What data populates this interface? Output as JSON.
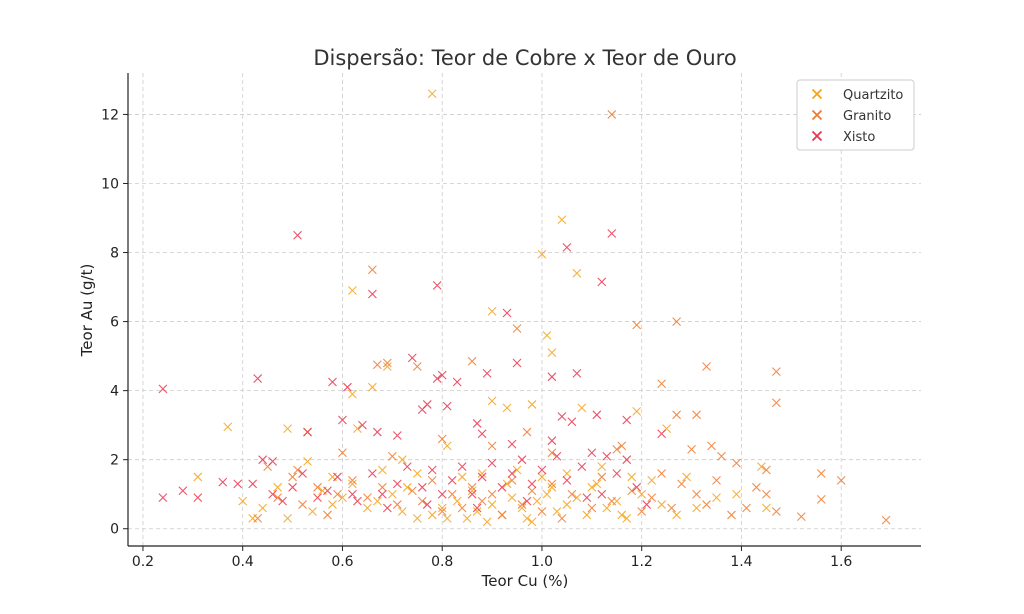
{
  "chart_data": {
    "type": "scatter",
    "title": "Dispersão: Teor de Cobre x Teor de Ouro",
    "xlabel": "Teor Cu (%)",
    "ylabel": "Teor Au (g/t)",
    "xlim": [
      0.17,
      1.76
    ],
    "ylim": [
      -0.5,
      13.2
    ],
    "xticks": [
      0.2,
      0.4,
      0.6,
      0.8,
      1.0,
      1.2,
      1.4,
      1.6
    ],
    "xtick_labels": [
      "0.2",
      "0.4",
      "0.6",
      "0.8",
      "1.0",
      "1.2",
      "1.4",
      "1.6"
    ],
    "yticks": [
      0,
      2,
      4,
      6,
      8,
      10,
      12
    ],
    "ytick_labels": [
      "0",
      "2",
      "4",
      "6",
      "8",
      "10",
      "12"
    ],
    "grid": true,
    "legend_position": "top-right",
    "series": [
      {
        "name": "Quartzito",
        "color": "#f5a31a",
        "points": [
          [
            0.78,
            12.6
          ],
          [
            1.04,
            8.95
          ],
          [
            1.0,
            7.95
          ],
          [
            1.07,
            7.4
          ],
          [
            0.62,
            6.9
          ],
          [
            0.9,
            6.3
          ],
          [
            1.01,
            5.6
          ],
          [
            1.02,
            5.1
          ],
          [
            0.69,
            4.7
          ],
          [
            0.66,
            4.1
          ],
          [
            0.62,
            3.9
          ],
          [
            0.37,
            2.95
          ],
          [
            0.53,
            2.8
          ],
          [
            0.49,
            2.9
          ],
          [
            0.63,
            2.9
          ],
          [
            0.9,
            3.7
          ],
          [
            0.93,
            3.5
          ],
          [
            0.98,
            3.6
          ],
          [
            1.08,
            3.5
          ],
          [
            1.19,
            3.4
          ],
          [
            1.25,
            2.9
          ],
          [
            0.81,
            2.4
          ],
          [
            0.72,
            2.0
          ],
          [
            0.53,
            1.95
          ],
          [
            0.58,
            1.5
          ],
          [
            0.68,
            1.7
          ],
          [
            0.75,
            1.6
          ],
          [
            0.84,
            1.5
          ],
          [
            0.88,
            1.6
          ],
          [
            0.95,
            1.7
          ],
          [
            1.0,
            1.5
          ],
          [
            1.05,
            1.6
          ],
          [
            1.12,
            1.8
          ],
          [
            1.18,
            1.5
          ],
          [
            1.22,
            1.4
          ],
          [
            1.29,
            1.5
          ],
          [
            1.44,
            1.8
          ],
          [
            0.31,
            1.5
          ],
          [
            0.4,
            0.8
          ],
          [
            0.42,
            0.3
          ],
          [
            0.44,
            0.6
          ],
          [
            0.49,
            0.3
          ],
          [
            0.54,
            0.5
          ],
          [
            0.58,
            0.7
          ],
          [
            0.6,
            0.9
          ],
          [
            0.65,
            0.6
          ],
          [
            0.7,
            1.0
          ],
          [
            0.72,
            0.5
          ],
          [
            0.75,
            0.3
          ],
          [
            0.78,
            0.4
          ],
          [
            0.8,
            0.6
          ],
          [
            0.83,
            0.8
          ],
          [
            0.85,
            0.3
          ],
          [
            0.87,
            0.5
          ],
          [
            0.9,
            0.7
          ],
          [
            0.92,
            0.4
          ],
          [
            0.94,
            0.9
          ],
          [
            0.96,
            0.6
          ],
          [
            0.97,
            0.3
          ],
          [
            0.99,
            0.8
          ],
          [
            1.01,
            1.0
          ],
          [
            1.03,
            0.5
          ],
          [
            1.05,
            0.7
          ],
          [
            1.07,
            0.9
          ],
          [
            1.09,
            0.4
          ],
          [
            1.1,
            1.2
          ],
          [
            1.13,
            0.6
          ],
          [
            1.15,
            0.8
          ],
          [
            1.17,
            0.3
          ],
          [
            1.2,
            1.0
          ],
          [
            1.24,
            0.7
          ],
          [
            1.27,
            0.4
          ],
          [
            1.31,
            0.6
          ],
          [
            1.35,
            0.9
          ],
          [
            1.39,
            1.0
          ],
          [
            1.45,
            0.6
          ],
          [
            0.47,
            1.2
          ],
          [
            0.56,
            1.1
          ],
          [
            0.62,
            1.3
          ],
          [
            0.73,
            1.2
          ],
          [
            0.86,
            1.1
          ],
          [
            0.93,
            1.3
          ],
          [
            1.02,
            1.2
          ],
          [
            1.11,
            1.3
          ],
          [
            1.16,
            0.4
          ],
          [
            0.98,
            0.2
          ],
          [
            0.89,
            0.2
          ],
          [
            0.81,
            0.3
          ],
          [
            0.67,
            0.8
          ]
        ]
      },
      {
        "name": "Granito",
        "color": "#f07a2f",
        "points": [
          [
            1.14,
            12.0
          ],
          [
            0.66,
            7.5
          ],
          [
            1.19,
            5.9
          ],
          [
            1.27,
            6.0
          ],
          [
            0.95,
            5.8
          ],
          [
            0.86,
            4.85
          ],
          [
            0.75,
            4.7
          ],
          [
            0.69,
            4.8
          ],
          [
            0.67,
            4.75
          ],
          [
            1.24,
            4.2
          ],
          [
            1.33,
            4.7
          ],
          [
            1.47,
            4.55
          ],
          [
            1.47,
            3.65
          ],
          [
            1.27,
            3.3
          ],
          [
            1.31,
            3.3
          ],
          [
            0.97,
            2.8
          ],
          [
            1.02,
            2.2
          ],
          [
            1.15,
            2.3
          ],
          [
            1.34,
            2.4
          ],
          [
            1.3,
            2.3
          ],
          [
            1.36,
            2.1
          ],
          [
            1.39,
            1.9
          ],
          [
            1.45,
            1.7
          ],
          [
            1.56,
            1.6
          ],
          [
            1.6,
            1.4
          ],
          [
            1.56,
            0.85
          ],
          [
            1.52,
            0.35
          ],
          [
            1.69,
            0.25
          ],
          [
            1.47,
            0.5
          ],
          [
            1.45,
            1.0
          ],
          [
            1.43,
            1.2
          ],
          [
            1.41,
            0.6
          ],
          [
            1.38,
            0.4
          ],
          [
            1.35,
            1.4
          ],
          [
            1.33,
            0.7
          ],
          [
            1.31,
            1.0
          ],
          [
            1.28,
            1.3
          ],
          [
            1.26,
            0.6
          ],
          [
            1.24,
            1.6
          ],
          [
            1.22,
            0.9
          ],
          [
            1.2,
            0.5
          ],
          [
            1.18,
            1.1
          ],
          [
            1.14,
            0.8
          ],
          [
            1.12,
            1.5
          ],
          [
            1.1,
            0.6
          ],
          [
            1.06,
            1.0
          ],
          [
            1.04,
            0.3
          ],
          [
            1.02,
            1.3
          ],
          [
            1.0,
            0.5
          ],
          [
            0.98,
            1.1
          ],
          [
            0.96,
            0.7
          ],
          [
            0.94,
            1.4
          ],
          [
            0.92,
            0.4
          ],
          [
            0.9,
            1.0
          ],
          [
            0.88,
            0.8
          ],
          [
            0.86,
            1.2
          ],
          [
            0.84,
            0.6
          ],
          [
            0.82,
            1.0
          ],
          [
            0.8,
            0.5
          ],
          [
            0.78,
            1.4
          ],
          [
            0.76,
            0.8
          ],
          [
            0.74,
            1.1
          ],
          [
            0.71,
            0.7
          ],
          [
            0.68,
            1.2
          ],
          [
            0.65,
            0.9
          ],
          [
            0.62,
            1.4
          ],
          [
            0.59,
            1.0
          ],
          [
            0.57,
            0.4
          ],
          [
            0.55,
            1.2
          ],
          [
            0.52,
            0.7
          ],
          [
            0.5,
            1.5
          ],
          [
            0.47,
            0.9
          ],
          [
            0.45,
            1.8
          ],
          [
            0.43,
            0.3
          ],
          [
            0.51,
            1.7
          ],
          [
            0.6,
            2.2
          ],
          [
            0.7,
            2.1
          ],
          [
            0.8,
            2.6
          ],
          [
            0.9,
            2.4
          ],
          [
            1.16,
            2.4
          ]
        ]
      },
      {
        "name": "Xisto",
        "color": "#e8354f",
        "points": [
          [
            0.51,
            8.5
          ],
          [
            1.05,
            8.15
          ],
          [
            1.14,
            8.55
          ],
          [
            1.12,
            7.15
          ],
          [
            0.79,
            7.05
          ],
          [
            0.66,
            6.8
          ],
          [
            0.93,
            6.25
          ],
          [
            0.24,
            4.05
          ],
          [
            0.43,
            4.35
          ],
          [
            0.58,
            4.25
          ],
          [
            0.61,
            4.1
          ],
          [
            0.74,
            4.95
          ],
          [
            0.79,
            4.35
          ],
          [
            0.8,
            4.45
          ],
          [
            0.83,
            4.25
          ],
          [
            0.89,
            4.5
          ],
          [
            0.95,
            4.8
          ],
          [
            1.02,
            4.4
          ],
          [
            1.07,
            4.5
          ],
          [
            0.77,
            3.6
          ],
          [
            0.76,
            3.45
          ],
          [
            0.81,
            3.55
          ],
          [
            0.6,
            3.15
          ],
          [
            0.64,
            3.0
          ],
          [
            0.87,
            3.05
          ],
          [
            1.04,
            3.25
          ],
          [
            1.06,
            3.1
          ],
          [
            1.11,
            3.3
          ],
          [
            1.17,
            3.15
          ],
          [
            1.24,
            2.75
          ],
          [
            1.02,
            2.55
          ],
          [
            0.94,
            2.45
          ],
          [
            0.88,
            2.75
          ],
          [
            0.71,
            2.7
          ],
          [
            0.67,
            2.8
          ],
          [
            0.53,
            2.8
          ],
          [
            0.46,
            1.95
          ],
          [
            0.44,
            2.0
          ],
          [
            0.36,
            1.35
          ],
          [
            0.28,
            1.1
          ],
          [
            0.31,
            0.9
          ],
          [
            0.24,
            0.9
          ],
          [
            0.39,
            1.3
          ],
          [
            0.46,
            1.0
          ],
          [
            0.5,
            1.2
          ],
          [
            0.55,
            0.9
          ],
          [
            0.59,
            1.5
          ],
          [
            0.62,
            1.0
          ],
          [
            0.66,
            1.6
          ],
          [
            0.68,
            1.0
          ],
          [
            0.71,
            1.3
          ],
          [
            0.73,
            1.8
          ],
          [
            0.76,
            1.2
          ],
          [
            0.78,
            1.7
          ],
          [
            0.8,
            1.0
          ],
          [
            0.82,
            1.4
          ],
          [
            0.84,
            1.8
          ],
          [
            0.86,
            1.0
          ],
          [
            0.88,
            1.5
          ],
          [
            0.9,
            1.9
          ],
          [
            0.92,
            1.2
          ],
          [
            0.94,
            1.6
          ],
          [
            0.96,
            2.0
          ],
          [
            0.98,
            1.3
          ],
          [
            1.0,
            1.7
          ],
          [
            1.03,
            2.1
          ],
          [
            1.05,
            1.4
          ],
          [
            1.08,
            1.8
          ],
          [
            1.1,
            2.2
          ],
          [
            1.12,
            1.0
          ],
          [
            1.15,
            1.6
          ],
          [
            1.17,
            2.0
          ],
          [
            1.19,
            1.2
          ],
          [
            1.21,
            0.7
          ],
          [
            1.13,
            2.1
          ],
          [
            1.09,
            0.9
          ],
          [
            0.97,
            0.8
          ],
          [
            0.87,
            0.6
          ],
          [
            0.77,
            0.7
          ],
          [
            0.69,
            0.6
          ],
          [
            0.63,
            0.8
          ],
          [
            0.57,
            1.1
          ],
          [
            0.52,
            1.6
          ],
          [
            0.48,
            0.8
          ],
          [
            0.42,
            1.3
          ]
        ]
      }
    ]
  }
}
